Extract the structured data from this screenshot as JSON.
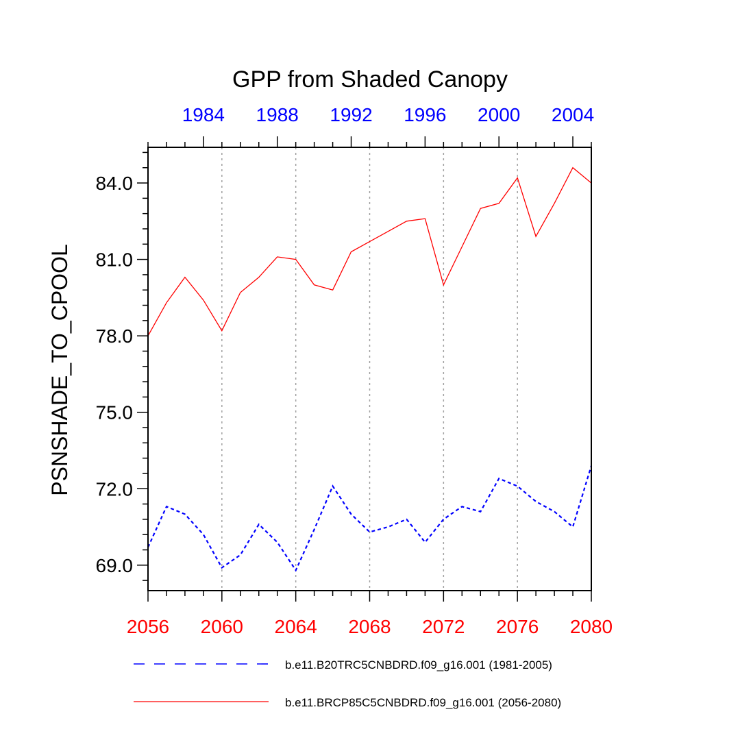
{
  "chart_data": {
    "type": "line",
    "title": "GPP from Shaded Canopy",
    "ylabel": "PSNSHADE_TO_CPOOL",
    "xlabel": "",
    "ylim": [
      68,
      85.4
    ],
    "yticks": [
      69.0,
      72.0,
      75.0,
      78.0,
      81.0,
      84.0
    ],
    "ytick_labels": [
      "69.0",
      "72.0",
      "75.0",
      "78.0",
      "81.0",
      "84.0"
    ],
    "bottom_axis": {
      "range": [
        2056,
        2080
      ],
      "ticks": [
        2056,
        2060,
        2064,
        2068,
        2072,
        2076,
        2080
      ],
      "tick_labels": [
        "2056",
        "2060",
        "2064",
        "2068",
        "2072",
        "2076",
        "2080"
      ],
      "color": "#ff0000"
    },
    "top_axis": {
      "range": [
        1981,
        2005
      ],
      "ticks": [
        1984,
        1988,
        1992,
        1996,
        2000,
        2004
      ],
      "tick_labels": [
        "1984",
        "1988",
        "1992",
        "1996",
        "2000",
        "2004"
      ],
      "color": "#0000ff"
    },
    "grid": "vertical dotted at bottom-axis ticks",
    "series": [
      {
        "name": "b.e11.B20TRC5CNBDRD.f09_g16.001 (1981-2005)",
        "axis": "top",
        "x": [
          1981,
          1982,
          1983,
          1984,
          1985,
          1986,
          1987,
          1988,
          1989,
          1990,
          1991,
          1992,
          1993,
          1994,
          1995,
          1996,
          1997,
          1998,
          1999,
          2000,
          2001,
          2002,
          2003,
          2004,
          2005
        ],
        "values": [
          69.7,
          71.3,
          71.0,
          70.2,
          68.9,
          69.4,
          70.6,
          69.9,
          68.8,
          70.4,
          72.1,
          71.0,
          70.3,
          70.5,
          70.8,
          69.9,
          70.8,
          71.3,
          71.1,
          72.4,
          72.1,
          71.5,
          71.1,
          70.5,
          72.9
        ],
        "color": "#0000ff",
        "style": "dashed"
      },
      {
        "name": "b.e11.BRCP85C5CNBDRD.f09_g16.001 (2056-2080)",
        "axis": "bottom",
        "x": [
          2056,
          2057,
          2058,
          2059,
          2060,
          2061,
          2062,
          2063,
          2064,
          2065,
          2066,
          2067,
          2068,
          2069,
          2070,
          2071,
          2072,
          2073,
          2074,
          2075,
          2076,
          2077,
          2078,
          2079,
          2080
        ],
        "values": [
          78.0,
          79.3,
          80.3,
          79.4,
          78.2,
          79.7,
          80.3,
          81.1,
          81.0,
          80.0,
          79.8,
          81.3,
          81.7,
          82.1,
          82.5,
          82.6,
          80.0,
          81.5,
          83.0,
          83.2,
          84.2,
          81.9,
          83.2,
          84.6,
          84.0
        ],
        "color": "#ff0000",
        "style": "solid"
      }
    ],
    "legend": {
      "placement": "below plot",
      "entries": [
        "b.e11.B20TRC5CNBDRD.f09_g16.001 (1981-2005)",
        "b.e11.BRCP85C5CNBDRD.f09_g16.001 (2056-2080)"
      ]
    }
  }
}
